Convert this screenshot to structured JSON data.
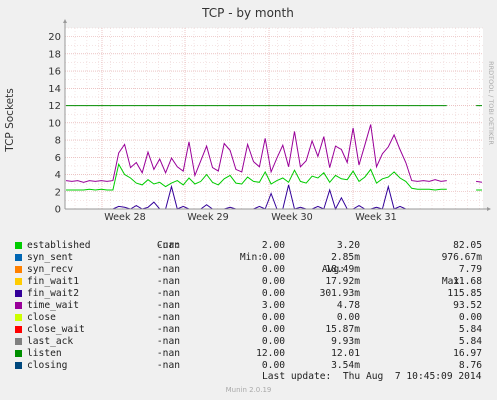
{
  "chart_data": {
    "type": "line",
    "title": "TCP - by month",
    "ylabel": "TCP Sockets",
    "xlabel": "",
    "ylim": [
      0,
      21
    ],
    "yticks": [
      0,
      2,
      4,
      6,
      8,
      10,
      12,
      14,
      16,
      18,
      20
    ],
    "x_tick_labels": [
      "Week 28",
      "Week 29",
      "Week 30",
      "Week 31"
    ],
    "side_label": "RRDTOOL / TOBI OETIKER",
    "grid": true,
    "series": [
      {
        "name": "established",
        "color": "#00cc00",
        "cur": "-nan",
        "min": "2.00",
        "avg": "3.20",
        "max": "82.05",
        "values": [
          2.2,
          2.2,
          2.2,
          2.2,
          2.3,
          2.2,
          2.3,
          2.2,
          2.2,
          5.2,
          4.0,
          3.6,
          3.0,
          2.8,
          3.4,
          2.9,
          3.1,
          2.6,
          3.0,
          3.3,
          2.8,
          3.6,
          2.9,
          3.2,
          4.0,
          3.1,
          2.8,
          3.5,
          3.9,
          3.0,
          2.9,
          3.7,
          3.2,
          3.1,
          4.3,
          2.9,
          3.3,
          3.6,
          3.1,
          4.5,
          3.2,
          3.0,
          3.8,
          3.6,
          4.2,
          3.1,
          3.9,
          3.5,
          3.4,
          4.4,
          3.2,
          3.7,
          4.6,
          3.0,
          3.5,
          3.7,
          4.3,
          3.6,
          3.2,
          2.4,
          2.3,
          2.3,
          2.3,
          2.2,
          2.3,
          2.3,
          null,
          null,
          null,
          null,
          2.2,
          2.2
        ]
      },
      {
        "name": "syn_sent",
        "color": "#0066b3",
        "cur": "-nan",
        "min": "0.00",
        "avg": "2.85m",
        "max": "976.67m",
        "values": []
      },
      {
        "name": "syn_recv",
        "color": "#ff8000",
        "cur": "-nan",
        "min": "0.00",
        "avg": "18.49m",
        "max": "7.79",
        "values": []
      },
      {
        "name": "fin_wait1",
        "color": "#ffcc00",
        "cur": "-nan",
        "min": "0.00",
        "avg": "17.92m",
        "max": "11.68",
        "values": []
      },
      {
        "name": "fin_wait2",
        "color": "#330099",
        "cur": "-nan",
        "min": "0.00",
        "avg": "301.93m",
        "max": "115.85",
        "values": [
          0,
          0,
          0,
          0,
          0,
          0,
          0,
          0,
          0,
          0.3,
          0.2,
          0,
          0.4,
          0,
          0.2,
          0.8,
          0,
          0,
          2.6,
          0,
          0.3,
          0,
          0,
          0,
          0.5,
          0,
          0,
          0,
          0.2,
          0,
          0,
          0,
          0,
          0.3,
          0,
          1.8,
          0,
          0,
          2.8,
          0,
          0.2,
          0,
          0,
          0.3,
          0,
          2.2,
          0,
          1.3,
          0,
          0,
          0.4,
          0,
          0,
          0.2,
          0,
          2.6,
          0,
          0.3,
          0,
          0,
          0,
          0,
          0,
          0,
          0,
          0,
          null,
          null,
          null,
          null,
          0,
          0
        ]
      },
      {
        "name": "time_wait",
        "color": "#990099",
        "cur": "-nan",
        "min": "3.00",
        "avg": "4.78",
        "max": "93.52",
        "values": [
          3.3,
          3.2,
          3.3,
          3.1,
          3.3,
          3.2,
          3.3,
          3.2,
          3.3,
          6.5,
          7.5,
          4.8,
          5.4,
          4.2,
          6.6,
          4.6,
          5.8,
          4.2,
          5.9,
          4.9,
          4.4,
          7.8,
          3.9,
          5.6,
          7.3,
          4.8,
          4.4,
          7.6,
          6.8,
          4.6,
          4.3,
          7.5,
          5.5,
          4.9,
          8.2,
          4.3,
          5.9,
          7.4,
          4.9,
          9.0,
          4.9,
          5.6,
          7.9,
          6.1,
          8.4,
          4.8,
          7.3,
          6.9,
          5.4,
          9.4,
          5.1,
          7.4,
          9.8,
          4.9,
          6.4,
          7.2,
          8.6,
          6.9,
          5.4,
          3.3,
          3.2,
          3.3,
          3.2,
          3.4,
          3.2,
          3.3,
          null,
          null,
          null,
          null,
          3.2,
          3.1
        ]
      },
      {
        "name": "close",
        "color": "#ccff00",
        "cur": "-nan",
        "min": "0.00",
        "avg": "0.00",
        "max": "0.00",
        "values": []
      },
      {
        "name": "close_wait",
        "color": "#ff0000",
        "cur": "-nan",
        "min": "0.00",
        "avg": "15.87m",
        "max": "5.84",
        "values": []
      },
      {
        "name": "last_ack",
        "color": "#808080",
        "cur": "-nan",
        "min": "0.00",
        "avg": "9.93m",
        "max": "5.84",
        "values": []
      },
      {
        "name": "listen",
        "color": "#008f00",
        "cur": "-nan",
        "min": "12.00",
        "avg": "12.01",
        "max": "16.97",
        "values": [
          12,
          12,
          12,
          12,
          12,
          12,
          12,
          12,
          12,
          12,
          12,
          12,
          12,
          12,
          12,
          12,
          12,
          12,
          12,
          12,
          12,
          12,
          12,
          12,
          12,
          12,
          12,
          12,
          12,
          12,
          12,
          12,
          12,
          12,
          12,
          12,
          12,
          12,
          12,
          12,
          12,
          12,
          12,
          12,
          12,
          12,
          12,
          12,
          12,
          12,
          12,
          12,
          12,
          12,
          12,
          12,
          12,
          12,
          12,
          12,
          12,
          12,
          12,
          12,
          12,
          12,
          null,
          null,
          null,
          null,
          12,
          12
        ]
      },
      {
        "name": "closing",
        "color": "#00487d",
        "cur": "-nan",
        "min": "0.00",
        "avg": "3.54m",
        "max": "8.76",
        "values": []
      }
    ]
  },
  "legend": {
    "headers": {
      "cur": "Cur:",
      "min": "Min:",
      "avg": "Avg:",
      "max": "Max:"
    }
  },
  "footer": {
    "last_update": "Last update:  Thu Aug  7 10:45:09 2014",
    "munin": "Munin 2.0.19"
  }
}
